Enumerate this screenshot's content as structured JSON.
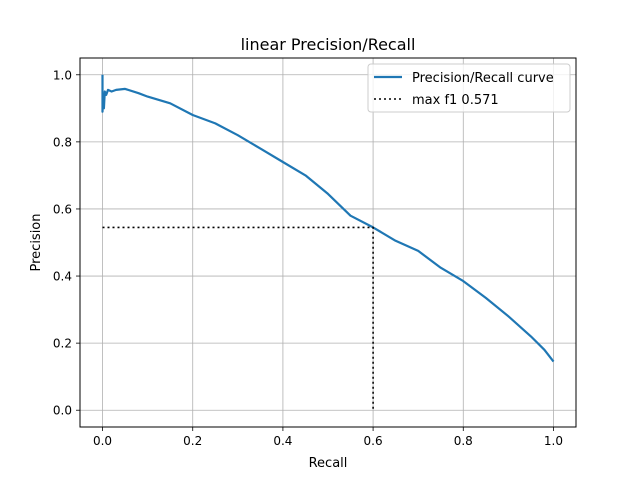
{
  "chart_data": {
    "type": "line",
    "title": "linear Precision/Recall",
    "xlabel": "Recall",
    "ylabel": "Precision",
    "xlim": [
      -0.05,
      1.05
    ],
    "ylim": [
      -0.05,
      1.05
    ],
    "grid": true,
    "legend_position": "top-right",
    "x_ticks": [
      0.0,
      0.2,
      0.4,
      0.6,
      0.8,
      1.0
    ],
    "x_tick_labels": [
      "0.0",
      "0.2",
      "0.4",
      "0.6",
      "0.8",
      "1.0"
    ],
    "y_ticks": [
      0.0,
      0.2,
      0.4,
      0.6,
      0.8,
      1.0
    ],
    "y_tick_labels": [
      "0.0",
      "0.2",
      "0.4",
      "0.6",
      "0.8",
      "1.0"
    ],
    "series": [
      {
        "name": "Precision/Recall curve",
        "style": "solid",
        "color": "#1f77b4",
        "x": [
          0.0,
          0.0,
          0.001,
          0.003,
          0.005,
          0.008,
          0.012,
          0.02,
          0.03,
          0.05,
          0.08,
          0.1,
          0.15,
          0.2,
          0.25,
          0.3,
          0.35,
          0.4,
          0.45,
          0.5,
          0.55,
          0.6,
          0.65,
          0.7,
          0.75,
          0.8,
          0.85,
          0.9,
          0.95,
          0.98,
          1.0
        ],
        "y": [
          1.0,
          0.89,
          0.93,
          0.9,
          0.95,
          0.94,
          0.955,
          0.95,
          0.955,
          0.958,
          0.945,
          0.935,
          0.915,
          0.88,
          0.855,
          0.82,
          0.78,
          0.74,
          0.7,
          0.645,
          0.58,
          0.545,
          0.505,
          0.475,
          0.425,
          0.385,
          0.335,
          0.28,
          0.22,
          0.18,
          0.145
        ]
      },
      {
        "name": "max f1 0.571",
        "style": "dotted",
        "color": "#000000",
        "x": [
          0.0,
          0.6,
          0.6
        ],
        "y": [
          0.545,
          0.545,
          0.0
        ]
      }
    ]
  }
}
